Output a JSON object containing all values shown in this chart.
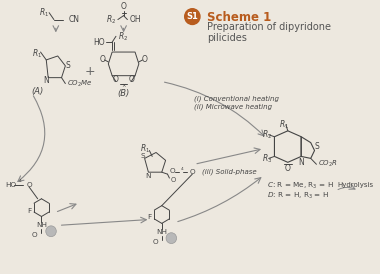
{
  "background_color": "#ede8df",
  "badge_color": "#b85c1e",
  "badge_text": "S1",
  "badge_text_color": "#ffffff",
  "title": "Scheme 1",
  "title_color": "#b85c1e",
  "subtitle": "Preparation of dipyridone\npilicides",
  "subtitle_color": "#555555",
  "title_fontsize": 8.5,
  "subtitle_fontsize": 7.0,
  "arrow_color": "#888888",
  "text_color": "#444444",
  "label_fontsize": 6.0,
  "small_fontsize": 5.5,
  "line_color": "#444444"
}
